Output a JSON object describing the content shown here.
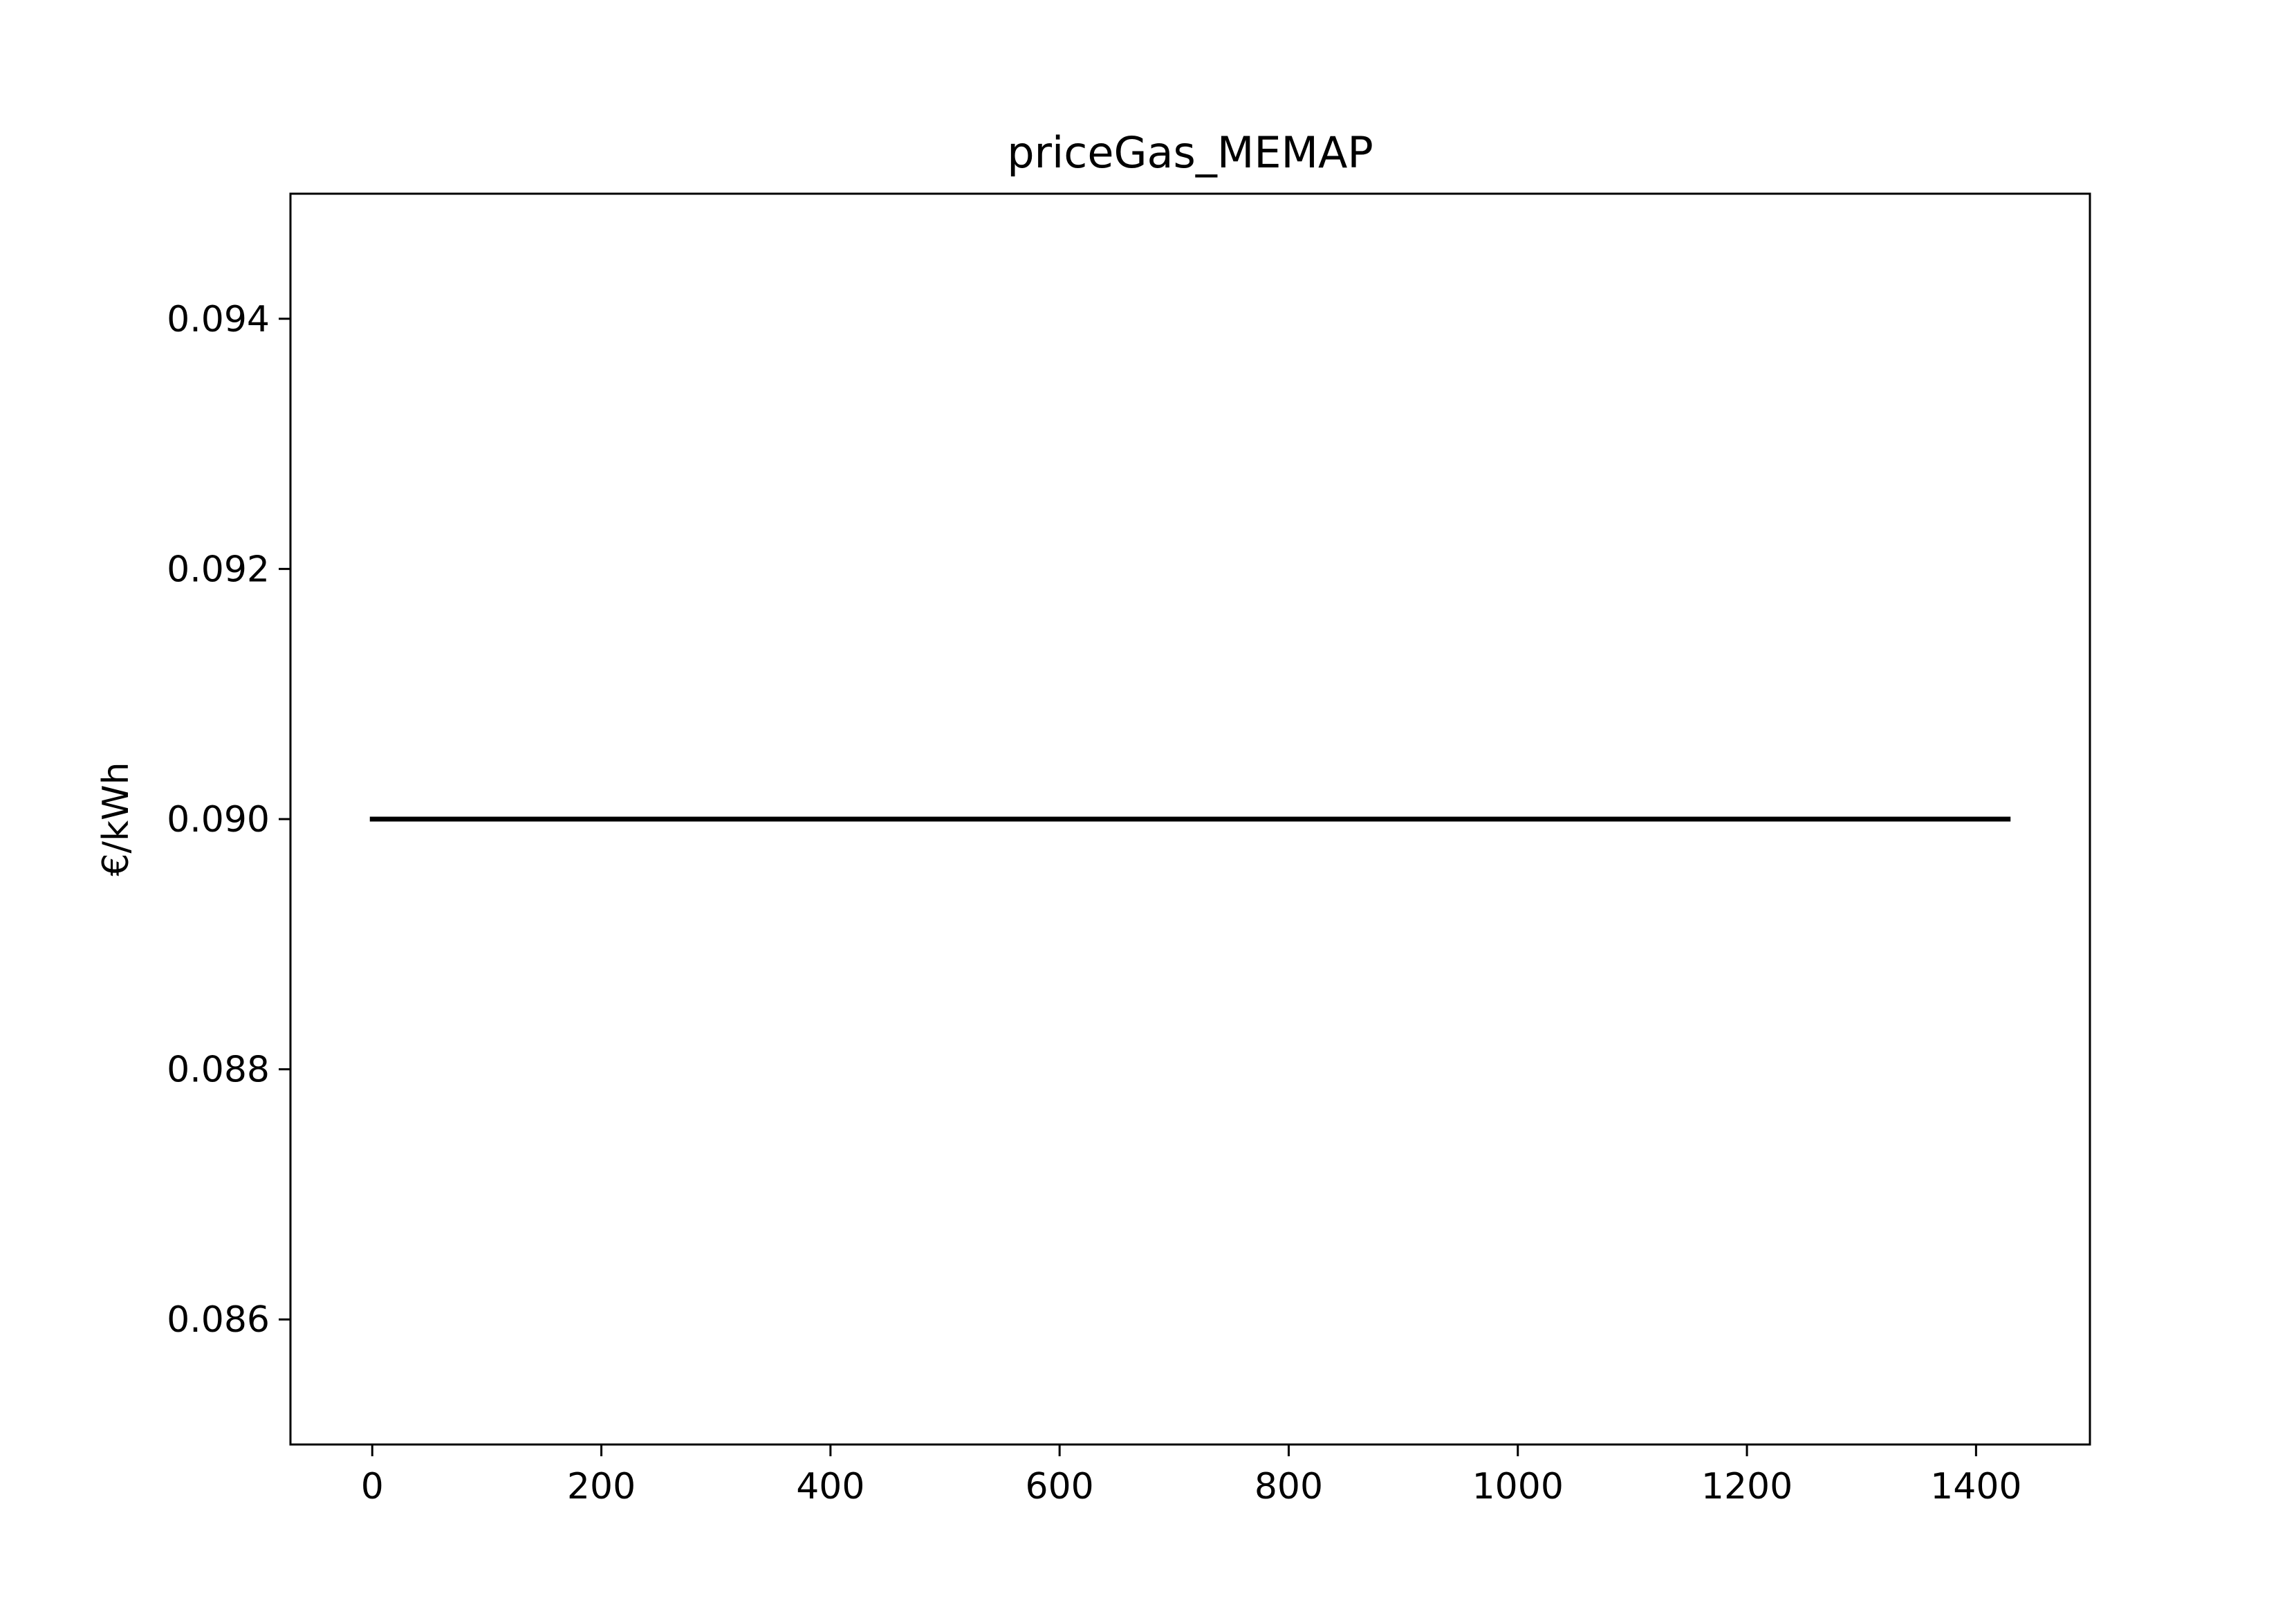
{
  "chart_data": {
    "type": "line",
    "title": "priceGas_MEMAP",
    "xlabel": "",
    "ylabel": "€/kWh",
    "xlim": [
      -71.4,
      1499.4
    ],
    "ylim": [
      0.085,
      0.095
    ],
    "xticks": [
      0,
      200,
      400,
      600,
      800,
      1000,
      1200,
      1400
    ],
    "xtick_labels": [
      "0",
      "200",
      "400",
      "600",
      "800",
      "1000",
      "1200",
      "1400"
    ],
    "yticks": [
      0.086,
      0.088,
      0.09,
      0.092,
      0.094
    ],
    "ytick_labels": [
      "0.086",
      "0.088",
      "0.090",
      "0.092",
      "0.094"
    ],
    "grid": false,
    "legend": "none",
    "series": [
      {
        "color": "#000000",
        "x": [
          0,
          1428
        ],
        "y": [
          0.09,
          0.09
        ]
      }
    ]
  }
}
